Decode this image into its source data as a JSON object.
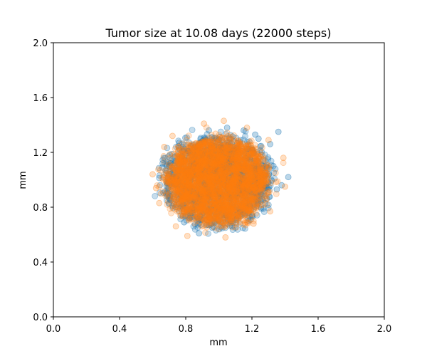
{
  "chart_data": {
    "type": "scatter",
    "title": "Tumor size at 10.08 days (22000 steps)",
    "xlabel": "mm",
    "ylabel": "mm",
    "xlim": [
      0.0,
      2.0
    ],
    "ylim": [
      0.0,
      2.0
    ],
    "xticks": [
      "0.0",
      "0.4",
      "0.8",
      "1.2",
      "1.6",
      "2.0"
    ],
    "yticks": [
      "0.0",
      "0.4",
      "0.8",
      "1.2",
      "1.6",
      "2.0"
    ],
    "grid": false,
    "legend": "none",
    "series": [
      {
        "color": "#1f77b4",
        "alpha": 0.25,
        "center": [
          0.99,
          0.99
        ],
        "approx_radius": 0.35,
        "points": [
          [
            1.36,
            1.35
          ],
          [
            1.42,
            1.02
          ],
          [
            1.38,
            0.96
          ],
          [
            0.88,
            0.61
          ],
          [
            0.79,
            0.69
          ],
          [
            0.66,
            1.12
          ],
          [
            1.31,
            1.26
          ],
          [
            1.28,
            0.83
          ],
          [
            1.27,
            0.79
          ],
          [
            0.94,
            1.36
          ],
          [
            1.05,
            1.38
          ],
          [
            1.24,
            1.3
          ],
          [
            0.72,
            0.81
          ],
          [
            0.84,
            0.73
          ],
          [
            1.18,
            0.7
          ],
          [
            1.33,
            1.1
          ],
          [
            1.35,
            0.93
          ],
          [
            0.7,
            1.04
          ],
          [
            0.76,
            1.27
          ],
          [
            1.22,
            1.33
          ],
          [
            1.15,
            1.36
          ],
          [
            0.96,
            0.65
          ],
          [
            1.08,
            0.66
          ],
          [
            0.68,
            0.9
          ]
        ]
      },
      {
        "color": "#ff7f0e",
        "alpha": 0.2,
        "center": [
          0.99,
          0.99
        ],
        "approx_radius": 0.33,
        "points": [
          [
            1.03,
            1.43
          ],
          [
            0.91,
            1.41
          ],
          [
            1.39,
            1.16
          ],
          [
            1.4,
            0.95
          ],
          [
            0.6,
            1.04
          ],
          [
            0.62,
            0.94
          ],
          [
            0.64,
            0.83
          ],
          [
            0.81,
            0.59
          ],
          [
            1.04,
            0.58
          ],
          [
            0.72,
            1.32
          ],
          [
            0.67,
            1.24
          ],
          [
            1.31,
            0.77
          ],
          [
            1.21,
            0.68
          ],
          [
            0.74,
            0.66
          ],
          [
            1.3,
            1.29
          ],
          [
            1.17,
            1.38
          ]
        ]
      }
    ]
  }
}
